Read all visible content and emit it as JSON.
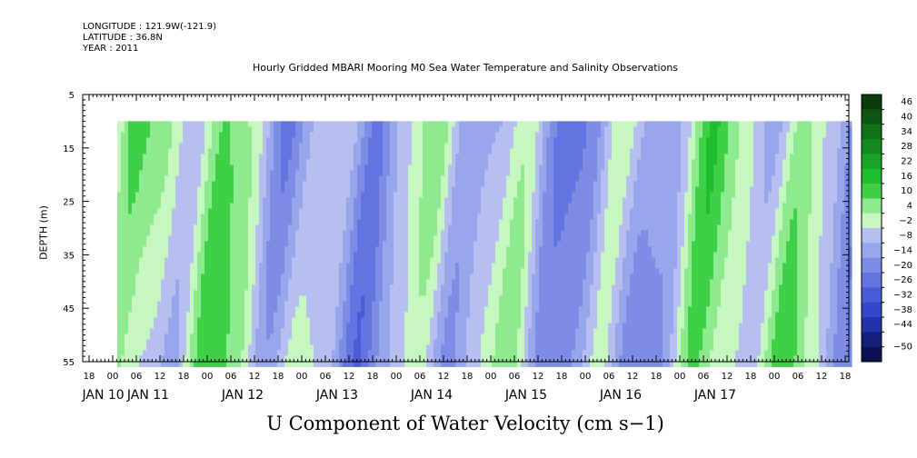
{
  "header": {
    "longitude": "LONGITUDE : 121.9W(-121.9)",
    "latitude": "LATITUDE : 36.8N",
    "year": "YEAR : 2011"
  },
  "chart_data": {
    "type": "heatmap",
    "title": "Hourly Gridded MBARI Mooring M0 Sea Water Temperature and Salinity Observations",
    "xlabel": "U Component of Water Velocity (cm s−1)",
    "ylabel": "DEPTH (m)",
    "ylim": [
      5,
      55
    ],
    "y_ticks": [
      "5",
      "15",
      "25",
      "35",
      "45",
      "55"
    ],
    "x_hour_ticks": [
      "18",
      "00",
      "06",
      "12",
      "18",
      "00",
      "06",
      "12",
      "18",
      "00",
      "06",
      "12",
      "18",
      "00",
      "06",
      "12",
      "18",
      "00",
      "06",
      "12",
      "18",
      "00",
      "06",
      "12",
      "18",
      "00",
      "06",
      "12",
      "18",
      "00",
      "06",
      "12",
      "18"
    ],
    "x_date_labels": [
      "JAN 10",
      "JAN 11",
      "JAN 12",
      "JAN 13",
      "JAN 14",
      "JAN 15",
      "JAN 16",
      "JAN 17"
    ],
    "data_depth_range": [
      10,
      55
    ],
    "colorbar": {
      "labels": [
        "46",
        "40",
        "34",
        "28",
        "22",
        "16",
        "10",
        "4",
        "−2",
        "−8",
        "−14",
        "−20",
        "−26",
        "−32",
        "−38",
        "−44",
        "−50"
      ],
      "colors": [
        "#0a3b0a",
        "#0f5512",
        "#127018",
        "#148a1e",
        "#18a426",
        "#1fbe30",
        "#3fd048",
        "#8eea8e",
        "#c6f7c0",
        "#b7bff0",
        "#98a6ec",
        "#7d8de6",
        "#6373e0",
        "#4a5bd8",
        "#3346c8",
        "#2233a8",
        "#141f7a",
        "#0a1250"
      ]
    }
  }
}
